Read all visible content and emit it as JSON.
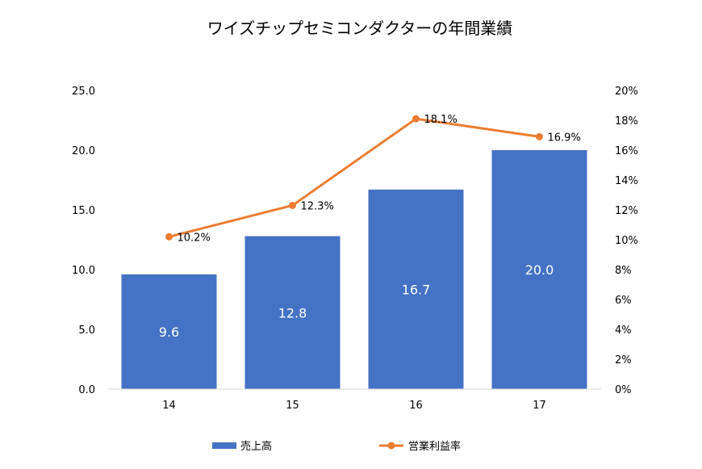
{
  "chart_data": {
    "type": "bar",
    "title": "ワイズチップセミコンダクターの年間業績",
    "categories": [
      "14",
      "15",
      "16",
      "17"
    ],
    "series": [
      {
        "name": "売上高",
        "type": "bar",
        "axis": "left",
        "color": "#4472C4",
        "values": [
          9.6,
          12.8,
          16.7,
          20.0
        ],
        "data_labels": [
          "9.6",
          "12.8",
          "16.7",
          "20.0"
        ]
      },
      {
        "name": "営業利益率",
        "type": "line",
        "axis": "right",
        "color": "#ED7D31",
        "values": [
          10.2,
          12.3,
          18.1,
          16.9
        ],
        "data_labels": [
          "10.2%",
          "12.3%",
          "18.1%",
          "16.9%"
        ]
      }
    ],
    "y_left": {
      "ylim": [
        0,
        25
      ],
      "ticks": [
        "0.0",
        "5.0",
        "10.0",
        "15.0",
        "20.0",
        "25.0"
      ]
    },
    "y_right": {
      "ylim": [
        0,
        20
      ],
      "ticks": [
        "0%",
        "2%",
        "4%",
        "6%",
        "8%",
        "10%",
        "12%",
        "14%",
        "16%",
        "18%",
        "20%"
      ]
    },
    "xlabel": "",
    "grid": false,
    "legend": "bottom"
  }
}
